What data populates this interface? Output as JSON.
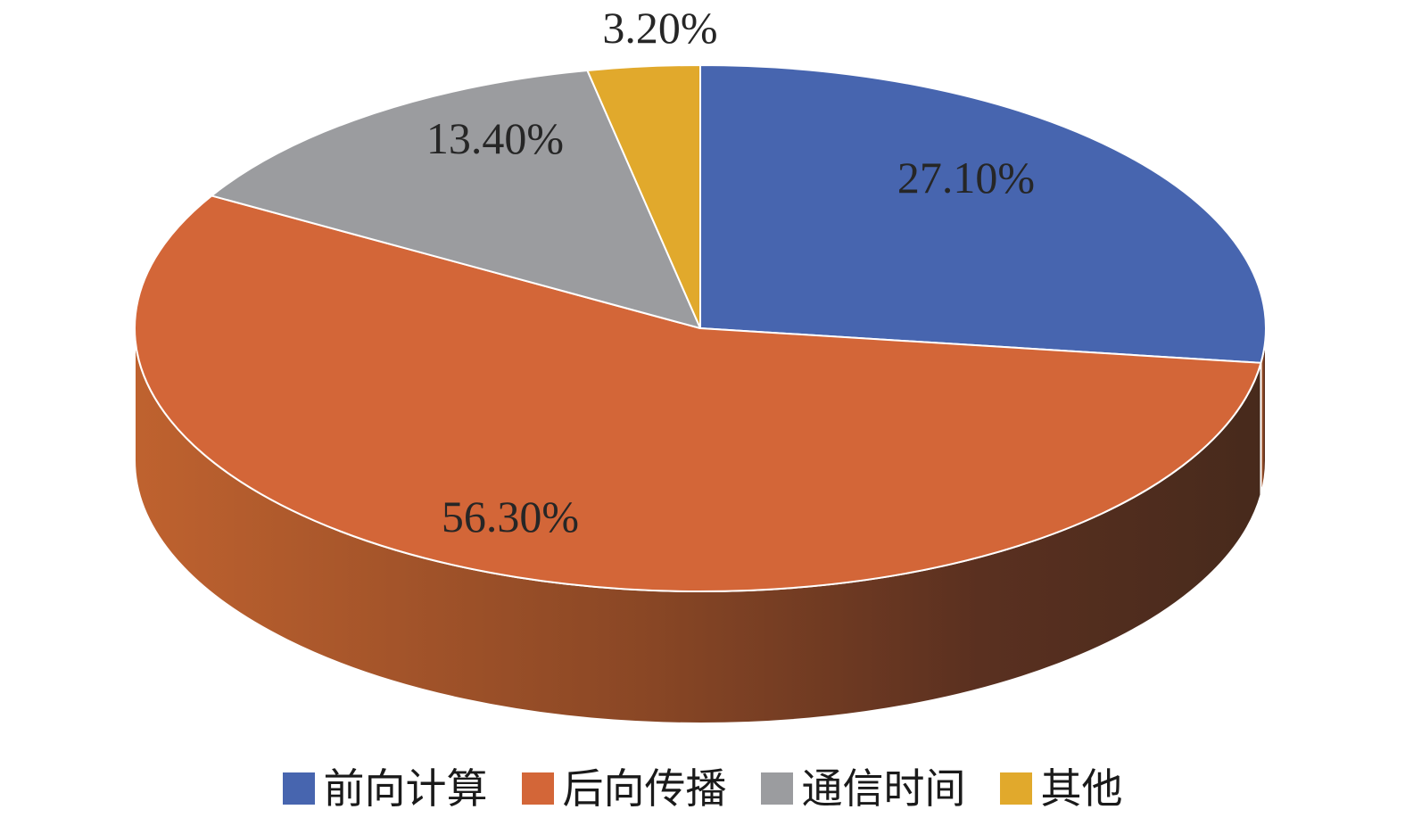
{
  "chart_data": {
    "type": "pie",
    "style": "3d",
    "slices": [
      {
        "label": "前向计算",
        "value": 27.1,
        "value_label": "27.10%",
        "color": "#4765AF"
      },
      {
        "label": "后向传播",
        "value": 56.3,
        "value_label": "56.30%",
        "color": "#D36638"
      },
      {
        "label": "通信时间",
        "value": 13.4,
        "value_label": "13.40%",
        "color": "#9B9C9F"
      },
      {
        "label": "其他",
        "value": 3.2,
        "value_label": "3.20%",
        "color": "#E1A92C"
      }
    ],
    "legend_position": "bottom",
    "title": ""
  }
}
